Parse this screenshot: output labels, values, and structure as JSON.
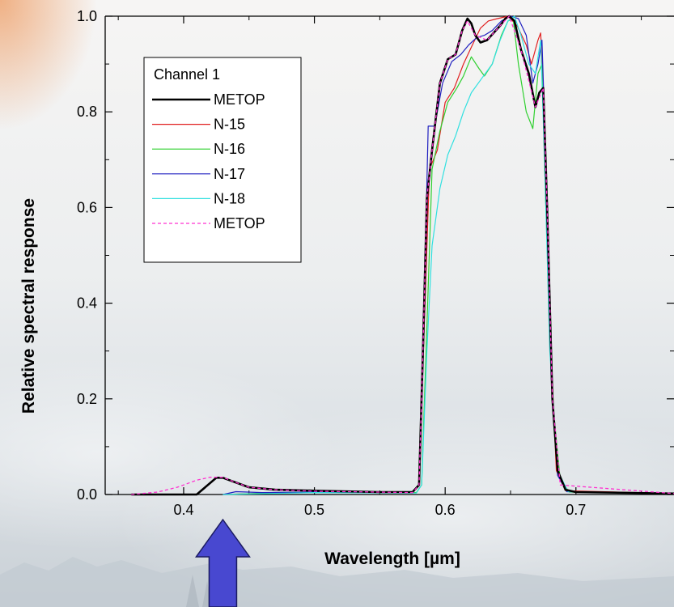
{
  "chart_data": {
    "type": "line",
    "xlabel": "Wavelength [µm]",
    "ylabel": "Relative spectral response",
    "xlim": [
      0.34,
      0.775
    ],
    "ylim": [
      0.0,
      1.0
    ],
    "x_ticks": [
      "0.4",
      "0.5",
      "0.6",
      "0.7"
    ],
    "x_tick_values": [
      0.4,
      0.5,
      0.6,
      0.7
    ],
    "y_ticks": [
      "0.0",
      "0.2",
      "0.4",
      "0.6",
      "0.8",
      "1.0"
    ],
    "y_tick_values": [
      0.0,
      0.2,
      0.4,
      0.6,
      0.8,
      1.0
    ],
    "grid": false,
    "legend_title": "Channel 1",
    "legend_position": "top-left",
    "series": [
      {
        "name": "METOP",
        "color": "#000000",
        "style": "solid",
        "width": 2.6,
        "points": [
          [
            0.36,
            0
          ],
          [
            0.41,
            0
          ],
          [
            0.425,
            0.035
          ],
          [
            0.43,
            0.035
          ],
          [
            0.45,
            0.015
          ],
          [
            0.47,
            0.01
          ],
          [
            0.5,
            0.008
          ],
          [
            0.55,
            0.005
          ],
          [
            0.575,
            0.005
          ],
          [
            0.58,
            0.02
          ],
          [
            0.583,
            0.3
          ],
          [
            0.586,
            0.62
          ],
          [
            0.59,
            0.72
          ],
          [
            0.596,
            0.86
          ],
          [
            0.602,
            0.91
          ],
          [
            0.608,
            0.92
          ],
          [
            0.613,
            0.97
          ],
          [
            0.617,
            0.995
          ],
          [
            0.62,
            0.985
          ],
          [
            0.623,
            0.96
          ],
          [
            0.627,
            0.945
          ],
          [
            0.632,
            0.95
          ],
          [
            0.637,
            0.965
          ],
          [
            0.642,
            0.98
          ],
          [
            0.646,
            0.995
          ],
          [
            0.649,
            1.0
          ],
          [
            0.653,
            0.99
          ],
          [
            0.658,
            0.93
          ],
          [
            0.664,
            0.88
          ],
          [
            0.669,
            0.81
          ],
          [
            0.672,
            0.84
          ],
          [
            0.675,
            0.85
          ],
          [
            0.678,
            0.6
          ],
          [
            0.682,
            0.2
          ],
          [
            0.686,
            0.05
          ],
          [
            0.692,
            0.01
          ],
          [
            0.7,
            0.005
          ],
          [
            0.775,
            0.002
          ]
        ]
      },
      {
        "name": "N-15",
        "color": "#e02020",
        "style": "solid",
        "width": 1.2,
        "points": [
          [
            0.43,
            0
          ],
          [
            0.5,
            0.006
          ],
          [
            0.575,
            0.004
          ],
          [
            0.58,
            0.02
          ],
          [
            0.584,
            0.35
          ],
          [
            0.588,
            0.68
          ],
          [
            0.594,
            0.72
          ],
          [
            0.6,
            0.82
          ],
          [
            0.607,
            0.85
          ],
          [
            0.614,
            0.9
          ],
          [
            0.62,
            0.935
          ],
          [
            0.627,
            0.975
          ],
          [
            0.633,
            0.99
          ],
          [
            0.64,
            0.995
          ],
          [
            0.648,
            1.0
          ],
          [
            0.655,
            0.98
          ],
          [
            0.662,
            0.94
          ],
          [
            0.666,
            0.9
          ],
          [
            0.671,
            0.95
          ],
          [
            0.673,
            0.965
          ],
          [
            0.676,
            0.8
          ],
          [
            0.68,
            0.35
          ],
          [
            0.685,
            0.05
          ],
          [
            0.692,
            0.008
          ],
          [
            0.775,
            0.002
          ]
        ]
      },
      {
        "name": "N-16",
        "color": "#30d030",
        "style": "solid",
        "width": 1.2,
        "points": [
          [
            0.43,
            0
          ],
          [
            0.5,
            0.006
          ],
          [
            0.578,
            0.004
          ],
          [
            0.582,
            0.02
          ],
          [
            0.586,
            0.35
          ],
          [
            0.59,
            0.68
          ],
          [
            0.596,
            0.76
          ],
          [
            0.602,
            0.82
          ],
          [
            0.609,
            0.85
          ],
          [
            0.614,
            0.875
          ],
          [
            0.62,
            0.915
          ],
          [
            0.626,
            0.89
          ],
          [
            0.63,
            0.875
          ],
          [
            0.636,
            0.9
          ],
          [
            0.643,
            0.96
          ],
          [
            0.648,
            0.99
          ],
          [
            0.652,
            0.995
          ],
          [
            0.656,
            0.9
          ],
          [
            0.662,
            0.8
          ],
          [
            0.667,
            0.765
          ],
          [
            0.671,
            0.88
          ],
          [
            0.674,
            0.9
          ],
          [
            0.677,
            0.6
          ],
          [
            0.682,
            0.2
          ],
          [
            0.688,
            0.03
          ],
          [
            0.695,
            0.005
          ],
          [
            0.775,
            0.002
          ]
        ]
      },
      {
        "name": "N-17",
        "color": "#2020c0",
        "style": "solid",
        "width": 1.2,
        "points": [
          [
            0.43,
            0
          ],
          [
            0.44,
            0.006
          ],
          [
            0.46,
            0.004
          ],
          [
            0.5,
            0.005
          ],
          [
            0.575,
            0.004
          ],
          [
            0.58,
            0.02
          ],
          [
            0.584,
            0.4
          ],
          [
            0.587,
            0.77
          ],
          [
            0.592,
            0.77
          ],
          [
            0.598,
            0.86
          ],
          [
            0.605,
            0.905
          ],
          [
            0.612,
            0.92
          ],
          [
            0.618,
            0.94
          ],
          [
            0.624,
            0.955
          ],
          [
            0.63,
            0.96
          ],
          [
            0.636,
            0.97
          ],
          [
            0.643,
            0.99
          ],
          [
            0.65,
            1.0
          ],
          [
            0.656,
            0.995
          ],
          [
            0.662,
            0.96
          ],
          [
            0.667,
            0.86
          ],
          [
            0.671,
            0.9
          ],
          [
            0.674,
            0.95
          ],
          [
            0.677,
            0.7
          ],
          [
            0.681,
            0.25
          ],
          [
            0.686,
            0.04
          ],
          [
            0.693,
            0.006
          ],
          [
            0.775,
            0.002
          ]
        ]
      },
      {
        "name": "N-18",
        "color": "#30e0e0",
        "style": "solid",
        "width": 1.2,
        "points": [
          [
            0.43,
            0
          ],
          [
            0.5,
            0.004
          ],
          [
            0.578,
            0.003
          ],
          [
            0.582,
            0.02
          ],
          [
            0.586,
            0.3
          ],
          [
            0.59,
            0.52
          ],
          [
            0.596,
            0.64
          ],
          [
            0.602,
            0.71
          ],
          [
            0.608,
            0.75
          ],
          [
            0.614,
            0.8
          ],
          [
            0.62,
            0.84
          ],
          [
            0.628,
            0.87
          ],
          [
            0.636,
            0.9
          ],
          [
            0.642,
            0.95
          ],
          [
            0.648,
            0.99
          ],
          [
            0.653,
            1.0
          ],
          [
            0.658,
            0.96
          ],
          [
            0.664,
            0.9
          ],
          [
            0.669,
            0.88
          ],
          [
            0.673,
            0.95
          ],
          [
            0.676,
            0.7
          ],
          [
            0.68,
            0.3
          ],
          [
            0.686,
            0.05
          ],
          [
            0.694,
            0.006
          ],
          [
            0.775,
            0.002
          ]
        ]
      },
      {
        "name": "METOP",
        "color": "#ff30d0",
        "style": "dashed",
        "width": 1.3,
        "points": [
          [
            0.36,
            0
          ],
          [
            0.38,
            0.005
          ],
          [
            0.395,
            0.015
          ],
          [
            0.41,
            0.03
          ],
          [
            0.42,
            0.036
          ],
          [
            0.43,
            0.036
          ],
          [
            0.44,
            0.025
          ],
          [
            0.45,
            0.015
          ],
          [
            0.47,
            0.01
          ],
          [
            0.5,
            0.007
          ],
          [
            0.575,
            0.004
          ],
          [
            0.58,
            0.02
          ],
          [
            0.583,
            0.3
          ],
          [
            0.586,
            0.62
          ],
          [
            0.59,
            0.72
          ],
          [
            0.596,
            0.86
          ],
          [
            0.602,
            0.91
          ],
          [
            0.608,
            0.92
          ],
          [
            0.613,
            0.97
          ],
          [
            0.617,
            0.99
          ],
          [
            0.623,
            0.96
          ],
          [
            0.632,
            0.95
          ],
          [
            0.642,
            0.98
          ],
          [
            0.649,
            1.0
          ],
          [
            0.658,
            0.93
          ],
          [
            0.669,
            0.81
          ],
          [
            0.675,
            0.85
          ],
          [
            0.678,
            0.6
          ],
          [
            0.682,
            0.2
          ],
          [
            0.688,
            0.02
          ],
          [
            0.775,
            0.002
          ]
        ]
      }
    ],
    "annotation": {
      "type": "arrow",
      "label": "",
      "color": "#4848d0",
      "points_to_x": 0.43
    }
  }
}
